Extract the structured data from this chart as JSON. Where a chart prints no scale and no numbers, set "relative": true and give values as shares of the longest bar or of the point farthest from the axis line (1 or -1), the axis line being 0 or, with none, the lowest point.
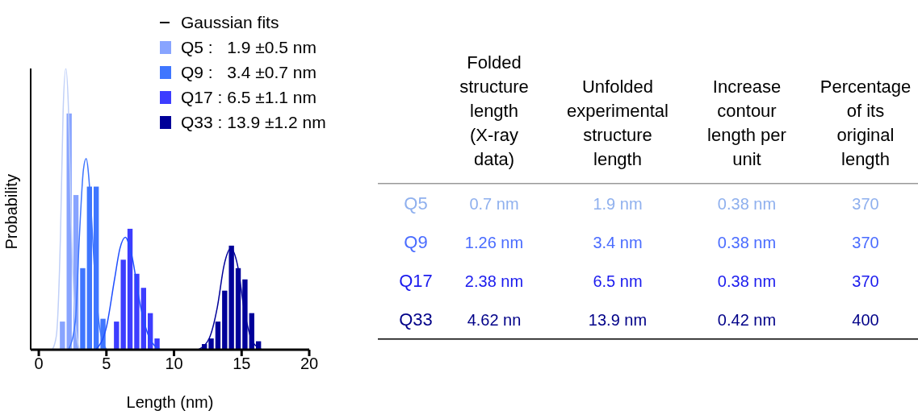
{
  "chart_data": [
    {
      "type": "histogram",
      "xlabel": "Length (nm)",
      "ylabel": "Probability",
      "relative": true,
      "xlim": [
        -0.6,
        20
      ],
      "xticks": [
        0,
        5,
        10,
        15,
        20
      ],
      "legend": "top",
      "annotations": [
        "Gaussian fits"
      ],
      "bins": [
        1.5,
        2,
        2.5,
        3,
        3.5,
        4,
        4.5,
        5,
        5.5,
        6,
        6.5,
        7,
        7.5,
        8,
        8.5,
        9,
        9.5,
        10,
        10.5,
        11,
        11.5,
        12,
        12.5,
        13,
        13.5,
        14,
        14.5,
        15,
        15.5,
        16,
        16.5
      ],
      "series": [
        {
          "name": "Q5 :   1.9 ±0.5 nm",
          "color": "#88a4ff",
          "values": [
            0.1,
            0.84,
            0.55,
            null,
            null,
            null,
            null,
            null,
            null,
            null,
            null,
            null,
            null,
            null,
            null,
            null,
            null,
            null,
            null,
            null,
            null,
            null,
            null,
            null,
            null,
            null,
            null,
            null,
            null,
            null
          ]
        },
        {
          "name": "Q9 :   3.4 ±0.7 nm",
          "color": "#3f76ff",
          "values": [
            null,
            null,
            null,
            0.29,
            0.58,
            0.58,
            0.11,
            null,
            null,
            null,
            null,
            null,
            null,
            null,
            null,
            null,
            null,
            null,
            null,
            null,
            null,
            null,
            null,
            null,
            null,
            null,
            null,
            null,
            null,
            null
          ]
        },
        {
          "name": "Q17 : 6.5 ±1.1 nm",
          "color": "#3d3dff",
          "values": [
            null,
            null,
            null,
            null,
            null,
            null,
            null,
            null,
            0.1,
            0.32,
            0.43,
            0.27,
            0.22,
            0.13,
            0.04,
            null,
            null,
            null,
            null,
            null,
            null,
            null,
            null,
            null,
            null,
            null,
            null,
            null,
            null,
            null
          ]
        },
        {
          "name": "Q33 : 13.9 ±1.2 nm",
          "color": "#000099",
          "values": [
            null,
            null,
            null,
            null,
            null,
            null,
            null,
            null,
            null,
            null,
            null,
            null,
            null,
            null,
            null,
            null,
            null,
            null,
            null,
            null,
            null,
            0.02,
            0.04,
            0.1,
            0.21,
            0.37,
            0.29,
            0.25,
            0.13,
            0.03
          ]
        },
        {
          "type": "line",
          "color": "#c0d0f8",
          "x": [
            1.0,
            1.3,
            1.6,
            1.8,
            2.0,
            2.2,
            2.4,
            2.7,
            3.0
          ],
          "values": [
            0,
            0.05,
            0.4,
            0.85,
            1.0,
            0.85,
            0.45,
            0.1,
            0
          ]
        },
        {
          "type": "line",
          "color": "#3f76ff",
          "x": [
            2.2,
            2.7,
            3.0,
            3.3,
            3.5,
            3.8,
            4.1,
            4.5,
            5.0
          ],
          "values": [
            0,
            0.1,
            0.4,
            0.64,
            0.68,
            0.55,
            0.3,
            0.08,
            0
          ]
        },
        {
          "type": "line",
          "color": "#1f4fff",
          "x": [
            4.2,
            5.0,
            5.6,
            6.0,
            6.4,
            6.9,
            7.5,
            8.2,
            9.0
          ],
          "values": [
            0,
            0.08,
            0.25,
            0.36,
            0.4,
            0.33,
            0.16,
            0.04,
            0
          ]
        },
        {
          "type": "line",
          "color": "#000099",
          "x": [
            11.8,
            12.6,
            13.2,
            13.7,
            14.2,
            14.7,
            15.2,
            15.8,
            16.5
          ],
          "values": [
            0,
            0.04,
            0.15,
            0.3,
            0.36,
            0.3,
            0.14,
            0.03,
            0
          ]
        }
      ]
    },
    {
      "type": "other",
      "colors": [
        "#8fb0ee",
        "#4a6cff",
        "#1a1aee",
        "#000088"
      ],
      "annotations": [
        "Folded\nstructure\nlength\n(X-ray\ndata)",
        "Unfolded\nexperimental\nstructure\nlength",
        "Increase\ncontour\nlength per\nunit",
        "Percentage\nof its\noriginal\nlength",
        "Q5",
        "0.7 nm",
        "1.9 nm",
        "0.38 nm",
        "370",
        "Q9",
        "1.26 nm",
        "3.4 nm",
        "0.38 nm",
        "370",
        "Q17",
        "2.38 nm",
        "6.5 nm",
        "0.38 nm",
        "370",
        "Q33",
        "4.62 nn",
        "13.9 nm",
        "0.42 nm",
        "400"
      ]
    }
  ]
}
